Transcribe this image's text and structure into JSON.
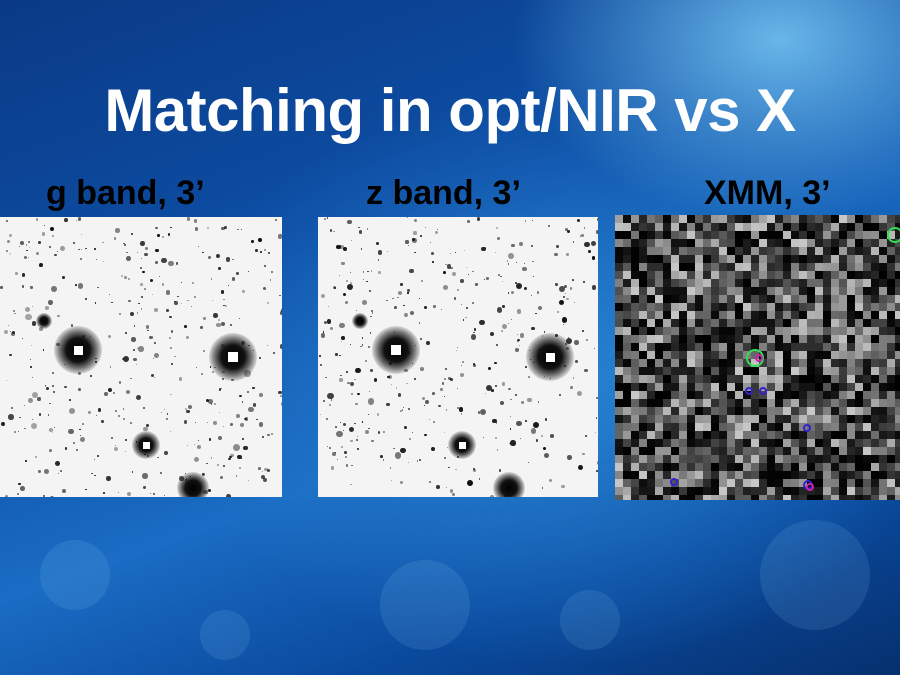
{
  "slide": {
    "title": "Matching in opt/NIR vs X"
  },
  "panels": [
    {
      "label": "g band, 3’",
      "kind": "optical"
    },
    {
      "label": "z band, 3’",
      "kind": "optical"
    },
    {
      "label": "XMM, 3’",
      "kind": "x-ray"
    }
  ],
  "colors": {
    "background_dark": "#0a3a86",
    "background_light": "#78c8f5",
    "title_text": "#ffffff",
    "label_text": "#000000",
    "xray_marker_green": "#33dd55",
    "xray_marker_blue": "#3322cc",
    "xray_marker_magenta": "#cc22aa"
  }
}
